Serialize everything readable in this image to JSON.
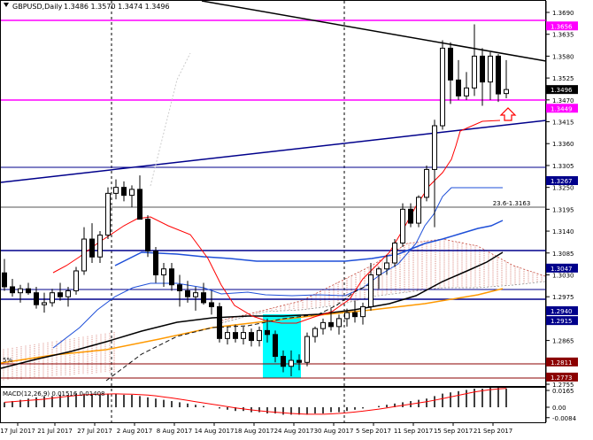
{
  "header": {
    "symbol": "GBPUSD,Daily",
    "ohlc": "1.3486 1.3570 1.3474 1.3496"
  },
  "main_chart": {
    "price_axis": {
      "ticks": [
        "1.3690",
        "1.3635",
        "1.3580",
        "1.3525",
        "1.3470",
        "1.3415",
        "1.3360",
        "1.3305",
        "1.3250",
        "1.3195",
        "1.3140",
        "1.3085",
        "1.3030",
        "1.2975",
        "1.2920",
        "1.2865",
        "1.2810",
        "1.2755"
      ]
    },
    "price_tags": [
      {
        "text": "1.3656",
        "color": "#ff00ff"
      },
      {
        "text": "1.3496",
        "color": "#000000"
      },
      {
        "text": "1.3449",
        "color": "#ff00ff"
      },
      {
        "text": "1.3267",
        "color": "#00008b"
      },
      {
        "text": "1.3047",
        "color": "#00008b"
      },
      {
        "text": "1.2940",
        "color": "#00008b"
      },
      {
        "text": "1.2915",
        "color": "#00008b"
      },
      {
        "text": "1.2811",
        "color": "#8b0000"
      },
      {
        "text": "1.2773",
        "color": "#8b0000"
      }
    ],
    "fibo_label": "23.6-1.3163",
    "left_label": "5%"
  },
  "macd": {
    "label": "MACD(12,26,9) 0.01516 0.01408",
    "ticks": [
      "0.0165",
      "0.00",
      "-0.0084"
    ]
  },
  "date_axis": {
    "labels": [
      "17 Jul 2017",
      "21 Jul 2017",
      "27 Jul 2017",
      "2 Aug 2017",
      "8 Aug 2017",
      "14 Aug 2017",
      "18 Aug 2017",
      "24 Aug 2017",
      "30 Aug 2017",
      "5 Sep 2017",
      "11 Sep 2017",
      "15 Sep 2017",
      "21 Sep 2017"
    ]
  },
  "colors": {
    "bullish": "#ffffff",
    "bearish": "#000000",
    "resistance": "#ff00ff",
    "support": "#00008b",
    "tenkan": "#ff0000",
    "kijun": "#1e4fd8",
    "sma_long": "#000000",
    "sma_orange": "#ff9900",
    "highlight_box": "#00ffff"
  }
}
